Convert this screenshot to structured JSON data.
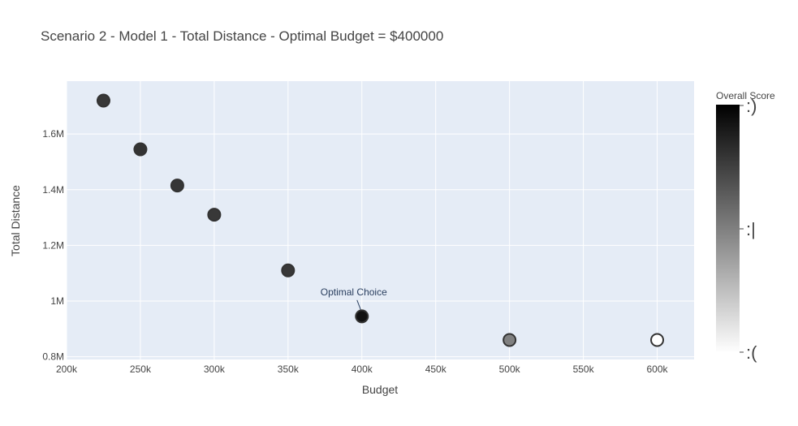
{
  "chart_data": {
    "type": "scatter",
    "title": "Scenario 2 - Model 1 - Total Distance - Optimal Budget = $400000",
    "xlabel": "Budget",
    "ylabel": "Total Distance",
    "xlim": [
      200000,
      625000
    ],
    "ylim": [
      790000,
      1790000
    ],
    "x_ticks": [
      200000,
      250000,
      300000,
      350000,
      400000,
      450000,
      500000,
      550000,
      600000
    ],
    "x_tick_labels": [
      "200k",
      "250k",
      "300k",
      "350k",
      "400k",
      "450k",
      "500k",
      "550k",
      "600k"
    ],
    "y_ticks": [
      800000,
      1000000,
      1200000,
      1400000,
      1600000
    ],
    "y_tick_labels": [
      "0.8M",
      "1M",
      "1.2M",
      "1.4M",
      "1.6M"
    ],
    "points": [
      {
        "x": 225000,
        "y": 1720000,
        "score": 0.78
      },
      {
        "x": 250000,
        "y": 1545000,
        "score": 0.8
      },
      {
        "x": 275000,
        "y": 1415000,
        "score": 0.79
      },
      {
        "x": 300000,
        "y": 1310000,
        "score": 0.78
      },
      {
        "x": 350000,
        "y": 1110000,
        "score": 0.78
      },
      {
        "x": 400000,
        "y": 945000,
        "score": 0.93
      },
      {
        "x": 500000,
        "y": 860000,
        "score": 0.5
      },
      {
        "x": 600000,
        "y": 860000,
        "score": 0.0
      }
    ],
    "annotation": {
      "text": "Optimal Choice",
      "x": 400000,
      "y": 945000
    },
    "colorbar": {
      "title": "Overall Score",
      "tick_labels": [
        ":)",
        ":|",
        ":("
      ],
      "colorscale": [
        "#ffffff",
        "#000000"
      ]
    },
    "grid": true,
    "plot_background": "#e5ecf6",
    "marker_outline": "#333333"
  }
}
